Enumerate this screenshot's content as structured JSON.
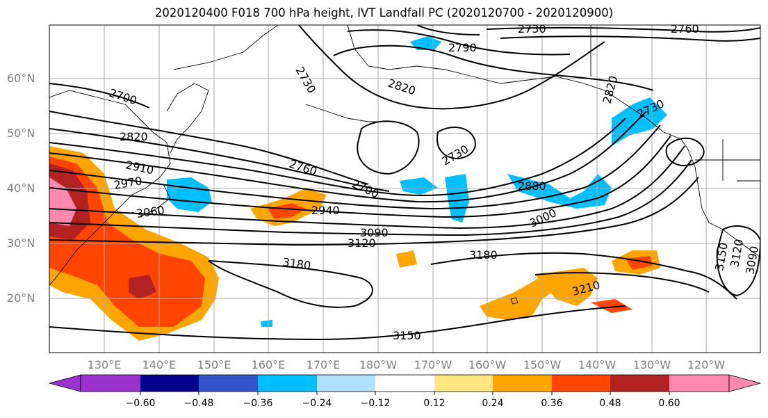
{
  "title": "2020120400 F018 700 hPa height, IVT Landfall PC (2020120700 - 2020120900)",
  "lat_labels": [
    "60°N",
    "50°N",
    "40°N",
    "30°N",
    "20°N"
  ],
  "lon_labels": [
    "130°E",
    "140°E",
    "150°E",
    "160°E",
    "170°E",
    "180°W",
    "170°W",
    "160°W",
    "150°W",
    "140°W",
    "130°W",
    "120°W"
  ],
  "contour_labels": [
    "2730",
    "2790",
    "2820",
    "2700",
    "2820",
    "2730",
    "2910",
    "2970",
    "2760",
    "2730",
    "2700",
    "2940",
    "3060",
    "3090",
    "3120",
    "2880",
    "3000",
    "3180",
    "3180",
    "3210",
    "3150",
    "2820",
    "2730",
    "3150",
    "3120",
    "3090",
    "2760"
  ],
  "colorbar": {
    "tick_labels": [
      "−0.60",
      "−0.48",
      "−0.36",
      "−0.24",
      "−0.12",
      "0.12",
      "0.24",
      "0.36",
      "0.48",
      "0.60"
    ],
    "colors": [
      "#9933cc",
      "#00008b",
      "#3355cc",
      "#00bfff",
      "#b0e0ff",
      "#ffffff",
      "#ffe680",
      "#ffa500",
      "#ff4500",
      "#b22222",
      "#ff88b0"
    ]
  }
}
